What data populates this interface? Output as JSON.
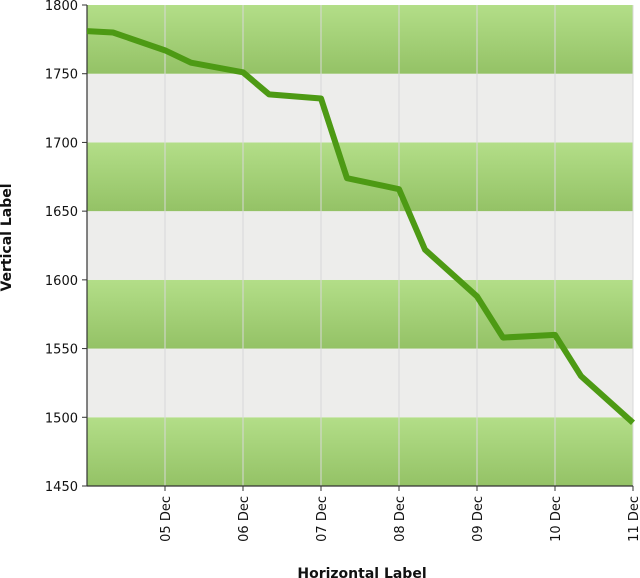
{
  "chart_data": {
    "type": "line",
    "xlabel": "Horizontal Label",
    "ylabel": "Vertical Label",
    "ylim": [
      1450,
      1800
    ],
    "xlim": [
      "04 Dec 08:00",
      "11 Dec 00:00"
    ],
    "y_ticks": [
      1450,
      1500,
      1550,
      1600,
      1650,
      1700,
      1750,
      1800
    ],
    "x_ticks": [
      "05 Dec",
      "06 Dec",
      "07 Dec",
      "08 Dec",
      "09 Dec",
      "10 Dec",
      "11 Dec"
    ],
    "x_tick_hours": [
      24,
      48,
      72,
      96,
      120,
      144,
      168
    ],
    "grid": "vertical lines at each tick",
    "band_colors": {
      "odd": "#a4d07a",
      "even": "#ededeb"
    },
    "line_color": "#4d9a14",
    "series": [
      {
        "x_hours": [
          0,
          8,
          24,
          32,
          48,
          56,
          72,
          80,
          96,
          104,
          120,
          128,
          144,
          152,
          168
        ],
        "values": [
          1781,
          1780,
          1767,
          1758,
          1751,
          1735,
          1732,
          1674,
          1666,
          1622,
          1588,
          1558,
          1560,
          1530,
          1496
        ]
      }
    ]
  }
}
